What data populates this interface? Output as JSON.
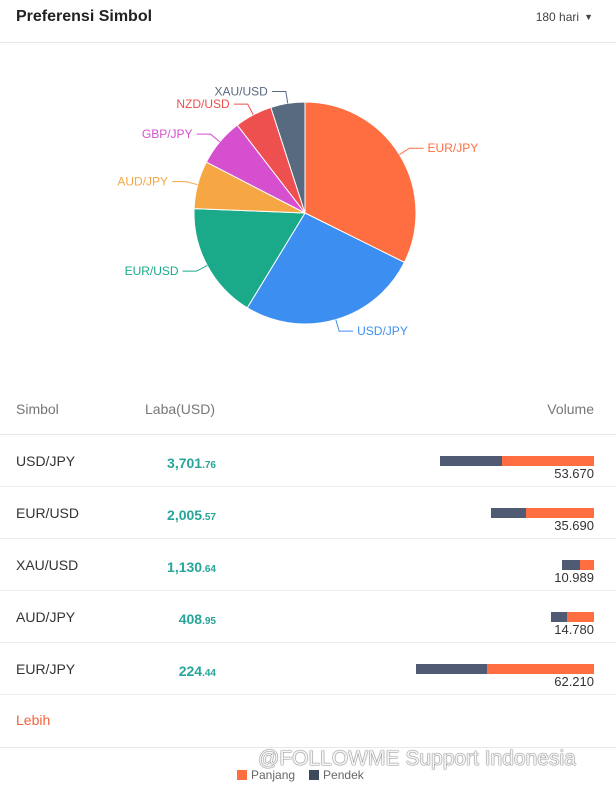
{
  "header": {
    "title": "Preferensi Simbol",
    "period": "180 hari",
    "caret": "▼"
  },
  "chart_data": {
    "type": "pie",
    "slices": [
      {
        "label": "EUR/JPY",
        "value": 32.5,
        "color": "#ff6e40"
      },
      {
        "label": "USD/JPY",
        "value": 26.5,
        "color": "#3c8ff0"
      },
      {
        "label": "EUR/USD",
        "value": 17.0,
        "color": "#1aaa8a"
      },
      {
        "label": "AUD/JPY",
        "value": 7.0,
        "color": "#f6a744"
      },
      {
        "label": "GBP/JPY",
        "value": 7.0,
        "color": "#d64fcf"
      },
      {
        "label": "NZD/USD",
        "value": 5.5,
        "color": "#ee5050"
      },
      {
        "label": "XAU/USD",
        "value": 5.0,
        "color": "#586a80"
      }
    ]
  },
  "table": {
    "headers": {
      "symbol": "Simbol",
      "profit": "Laba(USD)",
      "volume": "Volume"
    },
    "rows": [
      {
        "symbol": "USD/JPY",
        "profit_int": "3,701",
        "profit_dec": ".76",
        "volume": "53.670",
        "short_frac": 0.4,
        "long_frac": 0.6
      },
      {
        "symbol": "EUR/USD",
        "profit_int": "2,005",
        "profit_dec": ".57",
        "volume": "35.690",
        "short_frac": 0.34,
        "long_frac": 0.66
      },
      {
        "symbol": "XAU/USD",
        "profit_int": "1,130",
        "profit_dec": ".64",
        "volume": "10.989",
        "short_frac": 0.55,
        "long_frac": 0.45
      },
      {
        "symbol": "AUD/JPY",
        "profit_int": "408",
        "profit_dec": ".95",
        "volume": "14.780",
        "short_frac": 0.38,
        "long_frac": 0.62
      },
      {
        "symbol": "EUR/JPY",
        "profit_int": "224",
        "profit_dec": ".44",
        "volume": "62.210",
        "short_frac": 0.4,
        "long_frac": 0.6
      }
    ]
  },
  "more_label": "Lebih",
  "legend": {
    "long_label": "Panjang",
    "short_label": "Pendek",
    "long_color": "#ff6e40",
    "short_color": "#3d4a5c"
  },
  "watermark": "@FOLLOWME Support Indonesia"
}
